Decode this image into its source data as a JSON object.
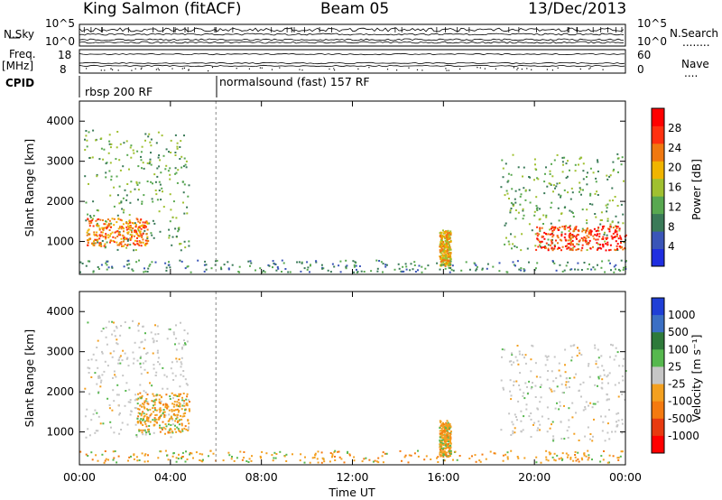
{
  "header": {
    "station": "King Salmon (fitACF)",
    "beam": "Beam 05",
    "date": "13/Dec/2013"
  },
  "side_labels": {
    "nsky": "N.Sky",
    "freq": "Freq.",
    "freq_unit": "[MHz]",
    "cpid": "CPID",
    "nsearch": "N.Search",
    "nave": "Nave",
    "nsearch_key": "........",
    "nave_key": "...."
  },
  "noise_ticks": {
    "top": "10^5",
    "bottom": "10^0"
  },
  "freq_ticks": {
    "left_top": "18",
    "left_bottom": "8",
    "right_top": "60",
    "right_bottom": "0"
  },
  "cpid_labels": [
    "rbsp 200 RF",
    "normalsound (fast) 157 RF"
  ],
  "colors": {
    "power_scale": [
      "#1f2ee0",
      "#3a55b8",
      "#3a7a58",
      "#58a850",
      "#a0c030",
      "#f0b400",
      "#f07810",
      "#ff3010",
      "#ff0000"
    ],
    "velocity_scale": [
      "#1f3fd6",
      "#3b6fc4",
      "#2e7a3a",
      "#56b84e",
      "#c6c6c6",
      "#f3a020",
      "#f47a10",
      "#e83a10",
      "#ff0000"
    ]
  },
  "chart_data": [
    {
      "type": "heatmap",
      "title": "",
      "xlabel": "Time UT",
      "ylabel": "Slant Range [km]",
      "x_ticks": [
        "00:00",
        "04:00",
        "08:00",
        "12:00",
        "16:00",
        "20:00",
        "00:00"
      ],
      "xlim_hours": [
        0,
        24
      ],
      "y_ticks": [
        "1000",
        "2000",
        "3000",
        "4000"
      ],
      "ylim_km": [
        180,
        4500
      ],
      "colorbar": {
        "label": "Power [dB]",
        "tick_values": [
          4,
          8,
          12,
          16,
          20,
          24,
          28
        ],
        "range": [
          0,
          32
        ]
      },
      "quantity": "power",
      "echo_regions": [
        {
          "t0": 0.2,
          "t1": 4.8,
          "r0": 800,
          "r1": 3800,
          "level": 12
        },
        {
          "t0": 0.3,
          "t1": 3.0,
          "r0": 900,
          "r1": 1600,
          "level": 24
        },
        {
          "t0": 15.8,
          "t1": 16.3,
          "r0": 400,
          "r1": 1300,
          "level": 20
        },
        {
          "t0": 18.5,
          "t1": 24.0,
          "r0": 800,
          "r1": 3200,
          "level": 12
        },
        {
          "t0": 20.0,
          "t1": 24.0,
          "r0": 800,
          "r1": 1400,
          "level": 26
        },
        {
          "t0": 0.0,
          "t1": 24.0,
          "r0": 250,
          "r1": 550,
          "level": 8
        }
      ]
    },
    {
      "type": "heatmap",
      "title": "",
      "xlabel": "Time UT",
      "ylabel": "Slant Range [km]",
      "x_ticks": [
        "00:00",
        "04:00",
        "08:00",
        "12:00",
        "16:00",
        "20:00",
        "00:00"
      ],
      "xlim_hours": [
        0,
        24
      ],
      "y_ticks": [
        "1000",
        "2000",
        "3000",
        "4000"
      ],
      "ylim_km": [
        180,
        4500
      ],
      "colorbar": {
        "label": "Velocity [m s⁻¹]",
        "tick_values": [
          1000,
          500,
          100,
          25,
          -25,
          -100,
          -500,
          -1000
        ]
      },
      "quantity": "velocity",
      "echo_regions": [
        {
          "t0": 0.2,
          "t1": 4.8,
          "r0": 800,
          "r1": 3800,
          "level": "ground"
        },
        {
          "t0": 2.5,
          "t1": 4.8,
          "r0": 1000,
          "r1": 2000,
          "level": "negative"
        },
        {
          "t0": 15.8,
          "t1": 16.3,
          "r0": 400,
          "r1": 1300,
          "level": "negative"
        },
        {
          "t0": 18.5,
          "t1": 24.0,
          "r0": 800,
          "r1": 3200,
          "level": "ground"
        },
        {
          "t0": 0.0,
          "t1": 24.0,
          "r0": 250,
          "r1": 550,
          "level": "negative"
        }
      ]
    }
  ]
}
